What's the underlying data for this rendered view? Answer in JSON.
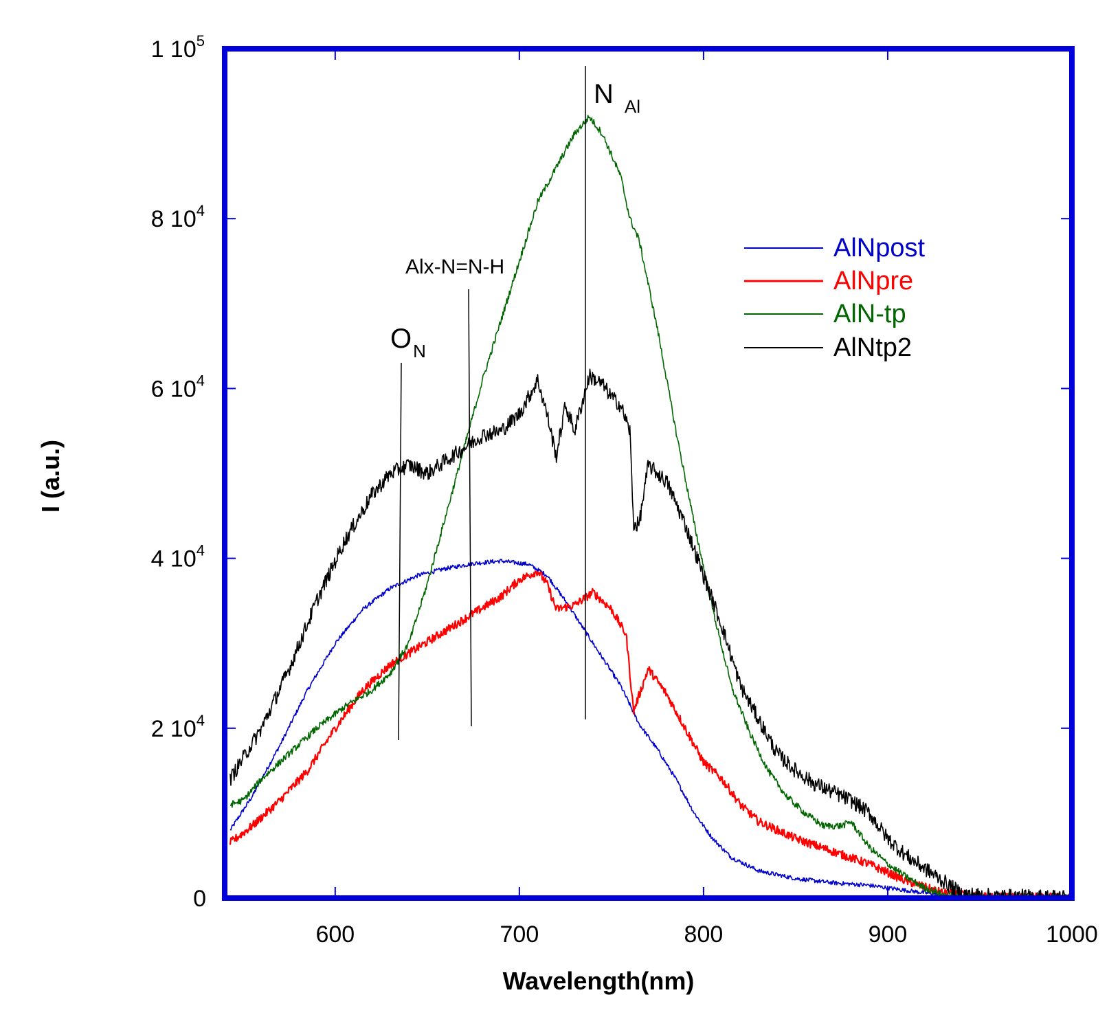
{
  "chart_data": {
    "type": "line",
    "title": "",
    "xlabel": "Wavelength(nm)",
    "ylabel": "I (a.u.)",
    "xlim": [
      540,
      1000
    ],
    "ylim": [
      0,
      100000
    ],
    "x_ticks": [
      {
        "value": 600,
        "label": "600"
      },
      {
        "value": 700,
        "label": "700"
      },
      {
        "value": 800,
        "label": "800"
      },
      {
        "value": 900,
        "label": "900"
      },
      {
        "value": 1000,
        "label": "1000"
      }
    ],
    "y_ticks": [
      {
        "value": 0,
        "mantissa": "0",
        "exp": ""
      },
      {
        "value": 20000,
        "mantissa": "2 10",
        "exp": "4"
      },
      {
        "value": 40000,
        "mantissa": "4 10",
        "exp": "4"
      },
      {
        "value": 60000,
        "mantissa": "6 10",
        "exp": "4"
      },
      {
        "value": 80000,
        "mantissa": "8 10",
        "exp": "4"
      },
      {
        "value": 100000,
        "mantissa": "1 10",
        "exp": "5"
      }
    ],
    "frame_color": "#0000dd",
    "legend_position": "top-right",
    "series": [
      {
        "name": "AlNpost",
        "color": "#0000cc",
        "x": [
          543,
          555,
          570,
          585,
          600,
          615,
          630,
          645,
          660,
          675,
          690,
          705,
          715,
          725,
          740,
          755,
          765,
          775,
          785,
          795,
          805,
          815,
          830,
          850,
          870,
          890,
          910,
          930,
          950,
          970,
          990,
          1000
        ],
        "y": [
          8000,
          12000,
          18000,
          24500,
          30000,
          34000,
          36500,
          38000,
          38800,
          39400,
          39700,
          39300,
          38000,
          35000,
          30000,
          25000,
          20500,
          17500,
          14000,
          10000,
          7000,
          4800,
          3200,
          2300,
          1800,
          1500,
          900,
          350,
          150,
          100,
          80,
          80
        ],
        "noise": 250
      },
      {
        "name": "AlNpre",
        "color": "#ff0000",
        "x": [
          543,
          555,
          570,
          585,
          600,
          615,
          630,
          645,
          660,
          675,
          690,
          700,
          710,
          715,
          720,
          730,
          740,
          750,
          758,
          762,
          770,
          780,
          790,
          800,
          810,
          820,
          830,
          850,
          870,
          890,
          910,
          930,
          950,
          970,
          990,
          1000
        ],
        "y": [
          6500,
          8500,
          11500,
          15000,
          20000,
          24500,
          27500,
          29500,
          31500,
          33500,
          35500,
          37500,
          38500,
          37000,
          34000,
          34500,
          36000,
          34000,
          31000,
          22000,
          27000,
          24000,
          20000,
          16000,
          14000,
          11000,
          9000,
          7000,
          5500,
          4000,
          2000,
          600,
          200,
          120,
          100,
          100
        ],
        "noise": 500
      },
      {
        "name": "AlN-tp",
        "color": "#006600",
        "x": [
          543,
          550,
          560,
          575,
          590,
          605,
          620,
          630,
          640,
          650,
          660,
          670,
          680,
          690,
          700,
          710,
          720,
          730,
          738,
          745,
          755,
          760,
          765,
          775,
          785,
          795,
          805,
          815,
          825,
          835,
          845,
          855,
          865,
          875,
          880,
          890,
          900,
          910,
          920,
          930,
          950,
          970,
          990,
          1000
        ],
        "y": [
          11000,
          11500,
          14000,
          17000,
          20000,
          22500,
          24500,
          26500,
          30000,
          37000,
          45000,
          53000,
          61000,
          68000,
          75000,
          82000,
          86000,
          90000,
          92000,
          90000,
          85000,
          80000,
          77500,
          67000,
          55000,
          44000,
          34000,
          25000,
          19500,
          15000,
          12000,
          10000,
          8500,
          8500,
          9000,
          6000,
          4000,
          2500,
          1200,
          400,
          150,
          120,
          120,
          150
        ],
        "noise": 400
      },
      {
        "name": "AlNtp2",
        "color": "#000000",
        "x": [
          543,
          560,
          575,
          590,
          605,
          620,
          630,
          640,
          650,
          660,
          670,
          680,
          690,
          700,
          710,
          715,
          720,
          725,
          730,
          738,
          745,
          750,
          755,
          760,
          762,
          765,
          770,
          780,
          790,
          800,
          810,
          820,
          830,
          840,
          850,
          860,
          870,
          880,
          890,
          900,
          910,
          920,
          930,
          940,
          960,
          980,
          1000
        ],
        "y": [
          14000,
          20000,
          27000,
          35000,
          42000,
          47500,
          50000,
          51000,
          50000,
          51500,
          53000,
          54500,
          55000,
          57000,
          61000,
          57000,
          52000,
          58000,
          55000,
          61500,
          60500,
          59000,
          58000,
          55000,
          44000,
          44000,
          51000,
          49000,
          44000,
          38000,
          32000,
          25000,
          21000,
          17000,
          15000,
          13500,
          12500,
          11500,
          10000,
          7000,
          5000,
          3500,
          2000,
          500,
          200,
          150,
          150
        ],
        "noise": 900
      }
    ],
    "annotations": [
      {
        "main": "O",
        "sub": "N",
        "line_x": 637
      },
      {
        "main": "Alx-N=N-H",
        "sub": "",
        "line_x": 673
      },
      {
        "main": "N",
        "sub": "Al",
        "line_x": 737
      }
    ]
  }
}
